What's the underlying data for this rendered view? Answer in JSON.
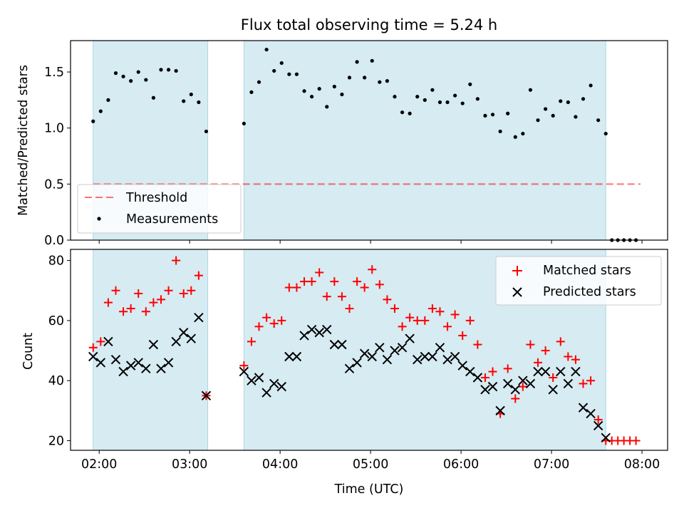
{
  "title": "Flux total observing time = 5.24 h",
  "colors": {
    "shade": "#add8e6",
    "threshold": "#ff0000",
    "measurement": "#000000",
    "matched": "#ff0000",
    "predicted": "#000000"
  },
  "chart_data": [
    {
      "type": "scatter",
      "panel": "top",
      "ylabel": "Matched/Predicted stars",
      "ylim": [
        0,
        1.78
      ],
      "xlim": [
        "01:41",
        "08:17"
      ],
      "yticks": [
        0.0,
        0.5,
        1.0,
        1.5
      ],
      "ytick_labels": [
        "0.0",
        "0.5",
        "1.0",
        "1.5"
      ],
      "shaded_intervals": [
        [
          "01:56",
          "03:12"
        ],
        [
          "03:36",
          "07:36"
        ]
      ],
      "legend": {
        "placement": "lower-left",
        "entries": [
          "Threshold",
          "Measurements"
        ]
      },
      "grid": false,
      "series": [
        {
          "name": "Threshold",
          "style": "dashed-line",
          "x": [
            "01:56",
            "07:59"
          ],
          "y": [
            0.5,
            0.5
          ]
        },
        {
          "name": "Measurements",
          "style": "dot",
          "x": [
            "01:56",
            "02:01",
            "02:06",
            "02:11",
            "02:16",
            "02:21",
            "02:26",
            "02:31",
            "02:36",
            "02:41",
            "02:46",
            "02:51",
            "02:56",
            "03:01",
            "03:06",
            "03:11",
            "03:36",
            "03:41",
            "03:46",
            "03:51",
            "03:56",
            "04:01",
            "04:06",
            "04:11",
            "04:16",
            "04:21",
            "04:26",
            "04:31",
            "04:36",
            "04:41",
            "04:46",
            "04:51",
            "04:56",
            "05:01",
            "05:06",
            "05:11",
            "05:16",
            "05:21",
            "05:26",
            "05:31",
            "05:36",
            "05:41",
            "05:46",
            "05:51",
            "05:56",
            "06:01",
            "06:06",
            "06:11",
            "06:16",
            "06:21",
            "06:26",
            "06:31",
            "06:36",
            "06:41",
            "06:46",
            "06:51",
            "06:56",
            "07:01",
            "07:06",
            "07:11",
            "07:16",
            "07:21",
            "07:26",
            "07:31",
            "07:36",
            "07:40",
            "07:44",
            "07:48",
            "07:52",
            "07:56"
          ],
          "y": [
            1.06,
            1.15,
            1.25,
            1.49,
            1.46,
            1.42,
            1.5,
            1.43,
            1.27,
            1.52,
            1.52,
            1.51,
            1.24,
            1.3,
            1.23,
            0.97,
            1.04,
            1.32,
            1.41,
            1.7,
            1.51,
            1.58,
            1.48,
            1.48,
            1.33,
            1.28,
            1.35,
            1.19,
            1.37,
            1.3,
            1.45,
            1.59,
            1.45,
            1.6,
            1.41,
            1.42,
            1.28,
            1.14,
            1.13,
            1.28,
            1.25,
            1.34,
            1.23,
            1.23,
            1.29,
            1.22,
            1.39,
            1.26,
            1.11,
            1.12,
            0.97,
            1.13,
            0.92,
            0.95,
            1.34,
            1.07,
            1.17,
            1.11,
            1.24,
            1.23,
            1.1,
            1.26,
            1.38,
            1.07,
            0.95,
            0.0,
            0.0,
            0.0,
            0.0,
            0.0
          ]
        }
      ]
    },
    {
      "type": "scatter",
      "panel": "bottom",
      "xlabel": "Time (UTC)",
      "ylabel": "Count",
      "ylim": [
        16.8,
        83.7
      ],
      "xlim": [
        "01:41",
        "08:17"
      ],
      "xticks": [
        "02:00",
        "03:00",
        "04:00",
        "05:00",
        "06:00",
        "07:00",
        "08:00"
      ],
      "yticks": [
        20,
        40,
        60,
        80
      ],
      "ytick_labels": [
        "20",
        "40",
        "60",
        "80"
      ],
      "shaded_intervals": [
        [
          "01:56",
          "03:12"
        ],
        [
          "03:36",
          "07:36"
        ]
      ],
      "legend": {
        "placement": "top-right",
        "entries": [
          "Matched stars",
          "Predicted stars"
        ]
      },
      "grid": false,
      "series": [
        {
          "name": "Matched stars",
          "style": "plus",
          "x": [
            "01:56",
            "02:01",
            "02:06",
            "02:11",
            "02:16",
            "02:21",
            "02:26",
            "02:31",
            "02:36",
            "02:41",
            "02:46",
            "02:51",
            "02:56",
            "03:01",
            "03:06",
            "03:11",
            "03:36",
            "03:41",
            "03:46",
            "03:51",
            "03:56",
            "04:01",
            "04:06",
            "04:11",
            "04:16",
            "04:21",
            "04:26",
            "04:31",
            "04:36",
            "04:41",
            "04:46",
            "04:51",
            "04:56",
            "05:01",
            "05:06",
            "05:11",
            "05:16",
            "05:21",
            "05:26",
            "05:31",
            "05:36",
            "05:41",
            "05:46",
            "05:51",
            "05:56",
            "06:01",
            "06:06",
            "06:11",
            "06:16",
            "06:21",
            "06:26",
            "06:31",
            "06:36",
            "06:41",
            "06:46",
            "06:51",
            "06:56",
            "07:01",
            "07:06",
            "07:11",
            "07:16",
            "07:21",
            "07:26",
            "07:31",
            "07:36",
            "07:40",
            "07:44",
            "07:48",
            "07:52",
            "07:56"
          ],
          "y": [
            51,
            53,
            66,
            70,
            63,
            64,
            69,
            63,
            66,
            67,
            70,
            80,
            69,
            70,
            75,
            35,
            45,
            53,
            58,
            61,
            59,
            60,
            71,
            71,
            73,
            73,
            76,
            68,
            73,
            68,
            64,
            73,
            71,
            77,
            72,
            67,
            64,
            58,
            61,
            60,
            60,
            64,
            63,
            58,
            62,
            55,
            60,
            52,
            41,
            43,
            29,
            44,
            34,
            38,
            52,
            46,
            50,
            41,
            53,
            48,
            47,
            39,
            40,
            27,
            20,
            20,
            20,
            20,
            20,
            20
          ]
        },
        {
          "name": "Predicted stars",
          "style": "x",
          "x": [
            "01:56",
            "02:01",
            "02:06",
            "02:11",
            "02:16",
            "02:21",
            "02:26",
            "02:31",
            "02:36",
            "02:41",
            "02:46",
            "02:51",
            "02:56",
            "03:01",
            "03:06",
            "03:11",
            "03:36",
            "03:41",
            "03:46",
            "03:51",
            "03:56",
            "04:01",
            "04:06",
            "04:11",
            "04:16",
            "04:21",
            "04:26",
            "04:31",
            "04:36",
            "04:41",
            "04:46",
            "04:51",
            "04:56",
            "05:01",
            "05:06",
            "05:11",
            "05:16",
            "05:21",
            "05:26",
            "05:31",
            "05:36",
            "05:41",
            "05:46",
            "05:51",
            "05:56",
            "06:01",
            "06:06",
            "06:11",
            "06:16",
            "06:21",
            "06:26",
            "06:31",
            "06:36",
            "06:41",
            "06:46",
            "06:51",
            "06:56",
            "07:01",
            "07:06",
            "07:11",
            "07:16",
            "07:21",
            "07:26",
            "07:31",
            "07:36"
          ],
          "y": [
            48,
            46,
            53,
            47,
            43,
            45,
            46,
            44,
            52,
            44,
            46,
            53,
            56,
            54,
            61,
            35,
            43,
            40,
            41,
            36,
            39,
            38,
            48,
            48,
            55,
            57,
            56,
            57,
            52,
            52,
            44,
            46,
            49,
            48,
            51,
            47,
            50,
            51,
            54,
            47,
            48,
            48,
            51,
            47,
            48,
            45,
            43,
            41,
            37,
            38,
            30,
            39,
            37,
            40,
            39,
            43,
            43,
            37,
            43,
            39,
            43,
            31,
            29,
            25,
            21
          ]
        }
      ]
    }
  ]
}
